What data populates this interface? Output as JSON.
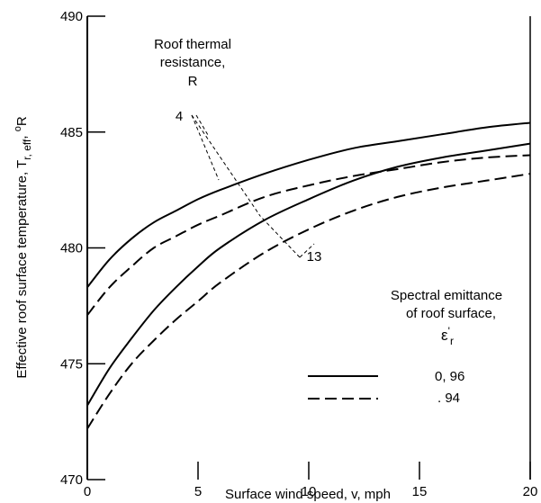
{
  "chart_data": {
    "type": "line",
    "xlabel": "Surface wind speed, v,  mph",
    "ylabel": "Effective roof surface temperature, T",
    "ylabel_sub": "r, eff",
    "ylabel_unit": "R",
    "ylabel_unit_sup": "o",
    "xlim": [
      0,
      20
    ],
    "ylim": [
      470,
      490
    ],
    "x_ticks": [
      "0",
      "5",
      "10",
      "15",
      "20"
    ],
    "y_ticks": [
      "470",
      "475",
      "480",
      "485",
      "490"
    ],
    "grid": false,
    "series": [
      {
        "R": "4",
        "emittance": "0.96",
        "dash": "solid",
        "color": "#000000",
        "x": [
          0,
          1,
          2,
          3,
          4,
          5,
          6,
          8,
          10,
          12,
          14,
          16,
          18,
          20
        ],
        "y": [
          478.3,
          479.5,
          480.4,
          481.1,
          481.6,
          482.1,
          482.5,
          483.2,
          483.8,
          484.3,
          484.6,
          484.9,
          485.2,
          485.4
        ]
      },
      {
        "R": "4",
        "emittance": "0.94",
        "dash": "dashed",
        "color": "#000000",
        "x": [
          0,
          1,
          2,
          3,
          4,
          5,
          6,
          8,
          10,
          12,
          14,
          16,
          18,
          20
        ],
        "y": [
          477.1,
          478.3,
          479.2,
          480.0,
          480.5,
          481.0,
          481.4,
          482.2,
          482.7,
          483.1,
          483.4,
          483.7,
          483.9,
          484.0
        ]
      },
      {
        "R": "13",
        "emittance": "0.96",
        "dash": "solid",
        "color": "#000000",
        "x": [
          0,
          1,
          2,
          3,
          4,
          5,
          6,
          8,
          10,
          12,
          14,
          16,
          18,
          20
        ],
        "y": [
          473.2,
          474.8,
          476.1,
          477.3,
          478.3,
          479.2,
          480.0,
          481.2,
          482.1,
          482.9,
          483.5,
          483.9,
          484.2,
          484.5
        ]
      },
      {
        "R": "13",
        "emittance": "0.94",
        "dash": "dashed",
        "color": "#000000",
        "x": [
          0,
          1,
          2,
          3,
          4,
          5,
          6,
          8,
          10,
          12,
          14,
          16,
          18,
          20
        ],
        "y": [
          472.2,
          473.7,
          475.0,
          476.0,
          476.9,
          477.7,
          478.5,
          479.8,
          480.8,
          481.6,
          482.2,
          482.6,
          482.9,
          483.2
        ]
      }
    ],
    "annotations": {
      "r_title_line1": "Roof thermal",
      "r_title_line2": "resistance,",
      "r_title_line3": "R",
      "r_value_4": "4",
      "r_value_13": "13",
      "legend_title_line1": "Spectral emittance",
      "legend_title_line2": "of roof surface,",
      "legend_symbol": "ε",
      "legend_symbol_sup": "'",
      "legend_symbol_sub": "r",
      "legend_solid_label": "0, 96",
      "legend_dashed_label": ". 94"
    }
  }
}
